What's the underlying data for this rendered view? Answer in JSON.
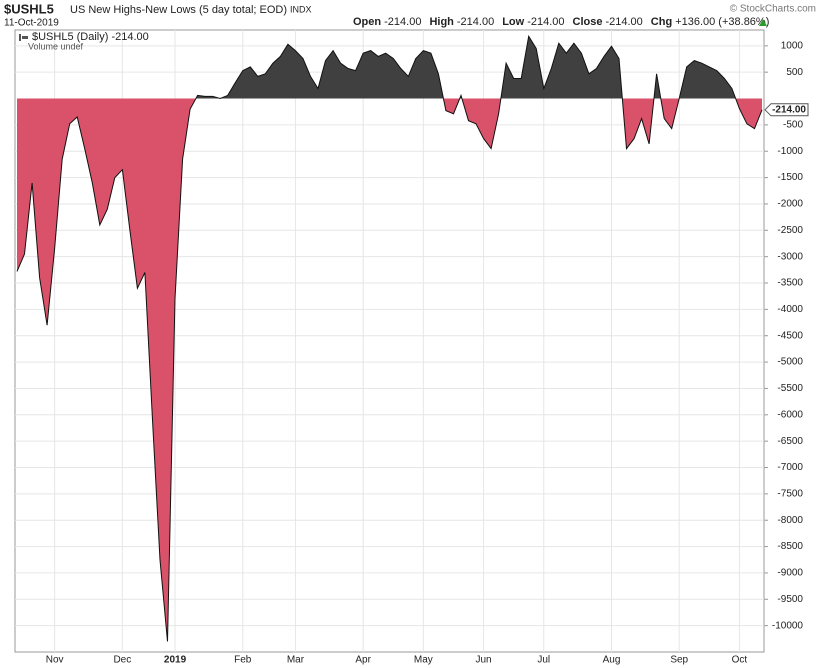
{
  "header": {
    "symbol": "$USHL5",
    "description": "US New Highs-New Lows (5 day total; EOD)",
    "exchange": "INDX",
    "date": "11-Oct-2019",
    "quote": [
      {
        "label": "Open",
        "value": "-214.00"
      },
      {
        "label": "High",
        "value": "-214.00"
      },
      {
        "label": "Low",
        "value": "-214.00"
      },
      {
        "label": "Close",
        "value": "-214.00"
      },
      {
        "label": "Chg",
        "value": "+136.00 (+38.86%)"
      }
    ],
    "credit": "© StockCharts.com"
  },
  "chart_data": {
    "type": "area",
    "legend": [
      "$USHL5 (Daily) -214.00",
      "Volume undef"
    ],
    "last_value_label": "-214.00",
    "positive_color": "#404040",
    "negative_color": "#d9526a",
    "line_color": "#111111",
    "grid": true,
    "categories": [
      null,
      null,
      null,
      null,
      null,
      "Nov",
      null,
      null,
      null,
      null,
      null,
      null,
      null,
      null,
      "Dec",
      null,
      null,
      null,
      null,
      null,
      null,
      "2019",
      null,
      null,
      null,
      null,
      null,
      null,
      null,
      null,
      "Feb",
      null,
      null,
      null,
      null,
      null,
      null,
      "Mar",
      null,
      null,
      null,
      null,
      null,
      null,
      null,
      null,
      "Apr",
      null,
      null,
      null,
      null,
      null,
      null,
      null,
      "May",
      null,
      null,
      null,
      null,
      null,
      null,
      null,
      "Jun",
      null,
      null,
      null,
      null,
      null,
      null,
      null,
      "Jul",
      null,
      null,
      null,
      null,
      null,
      null,
      null,
      null,
      "Aug",
      null,
      null,
      null,
      null,
      null,
      null,
      null,
      null,
      "Sep",
      null,
      null,
      null,
      null,
      null,
      null,
      null,
      "Oct",
      null,
      null,
      null
    ],
    "values": [
      -3280,
      -2950,
      -1600,
      -3400,
      -4300,
      -2850,
      -1150,
      -480,
      -350,
      -950,
      -1600,
      -2400,
      -2100,
      -1500,
      -1350,
      -2500,
      -3600,
      -3300,
      -6100,
      -8750,
      -10300,
      -3800,
      -1150,
      -200,
      60,
      40,
      40,
      0,
      60,
      300,
      530,
      600,
      420,
      470,
      670,
      800,
      1030,
      910,
      760,
      420,
      190,
      720,
      910,
      670,
      570,
      530,
      860,
      910,
      800,
      860,
      760,
      570,
      420,
      760,
      910,
      860,
      470,
      -230,
      -290,
      60,
      -420,
      -480,
      -760,
      -950,
      -290,
      670,
      380,
      380,
      1180,
      950,
      190,
      570,
      1050,
      860,
      1050,
      860,
      470,
      570,
      800,
      990,
      760,
      -950,
      -760,
      -380,
      -860,
      470,
      -380,
      -570,
      0,
      600,
      720,
      670,
      600,
      530,
      380,
      190,
      -190,
      -480,
      -570,
      -214
    ],
    "ylim": [
      -10500,
      1300
    ],
    "yticks": [
      1000,
      500,
      -500,
      -1000,
      -1500,
      -2000,
      -2500,
      -3000,
      -3500,
      -4000,
      -4500,
      -5000,
      -5500,
      -6000,
      -6500,
      -7000,
      -7500,
      -8000,
      -8500,
      -9000,
      -9500,
      -10000
    ]
  }
}
